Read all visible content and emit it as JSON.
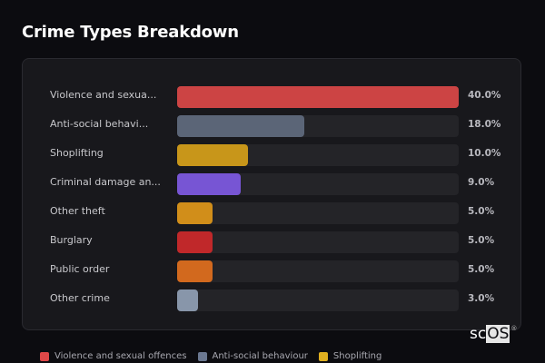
{
  "header": {
    "title": "Crime Types Breakdown"
  },
  "chart_data": {
    "type": "bar",
    "orientation": "horizontal",
    "title": "Crime Types Breakdown",
    "xlabel": "",
    "ylabel": "",
    "xlim": [
      0,
      40
    ],
    "grid": false,
    "legend_position": "bottom",
    "categories": [
      "Violence and sexual offences",
      "Anti-social behaviour",
      "Shoplifting",
      "Criminal damage and arson",
      "Other theft",
      "Burglary",
      "Public order",
      "Other crime"
    ],
    "values": [
      40.0,
      18.0,
      10.0,
      9.0,
      5.0,
      5.0,
      5.0,
      3.0
    ],
    "unit": "%"
  },
  "rows": [
    {
      "label": "Violence and sexua...",
      "value": "40.0%",
      "pct": 40.0,
      "color": "#cc4444"
    },
    {
      "label": "Anti-social behavi...",
      "value": "18.0%",
      "pct": 18.0,
      "color": "#5b6577"
    },
    {
      "label": "Shoplifting",
      "value": "10.0%",
      "pct": 10.0,
      "color": "#c8961a"
    },
    {
      "label": "Criminal damage an...",
      "value": "9.0%",
      "pct": 9.0,
      "color": "#7755d4"
    },
    {
      "label": "Other theft",
      "value": "5.0%",
      "pct": 5.0,
      "color": "#d18e1a"
    },
    {
      "label": "Burglary",
      "value": "5.0%",
      "pct": 5.0,
      "color": "#c0282a"
    },
    {
      "label": "Public order",
      "value": "5.0%",
      "pct": 5.0,
      "color": "#d2691e"
    },
    {
      "label": "Other crime",
      "value": "3.0%",
      "pct": 3.0,
      "color": "#8896aa"
    }
  ],
  "legend": [
    {
      "label": "Violence and sexual offences",
      "color": "#e04848"
    },
    {
      "label": "Anti-social behaviour",
      "color": "#6b7891"
    },
    {
      "label": "Shoplifting",
      "color": "#e0b020"
    }
  ],
  "watermark": {
    "prefix": "sc",
    "boxed": "OS",
    "mark": "®"
  }
}
